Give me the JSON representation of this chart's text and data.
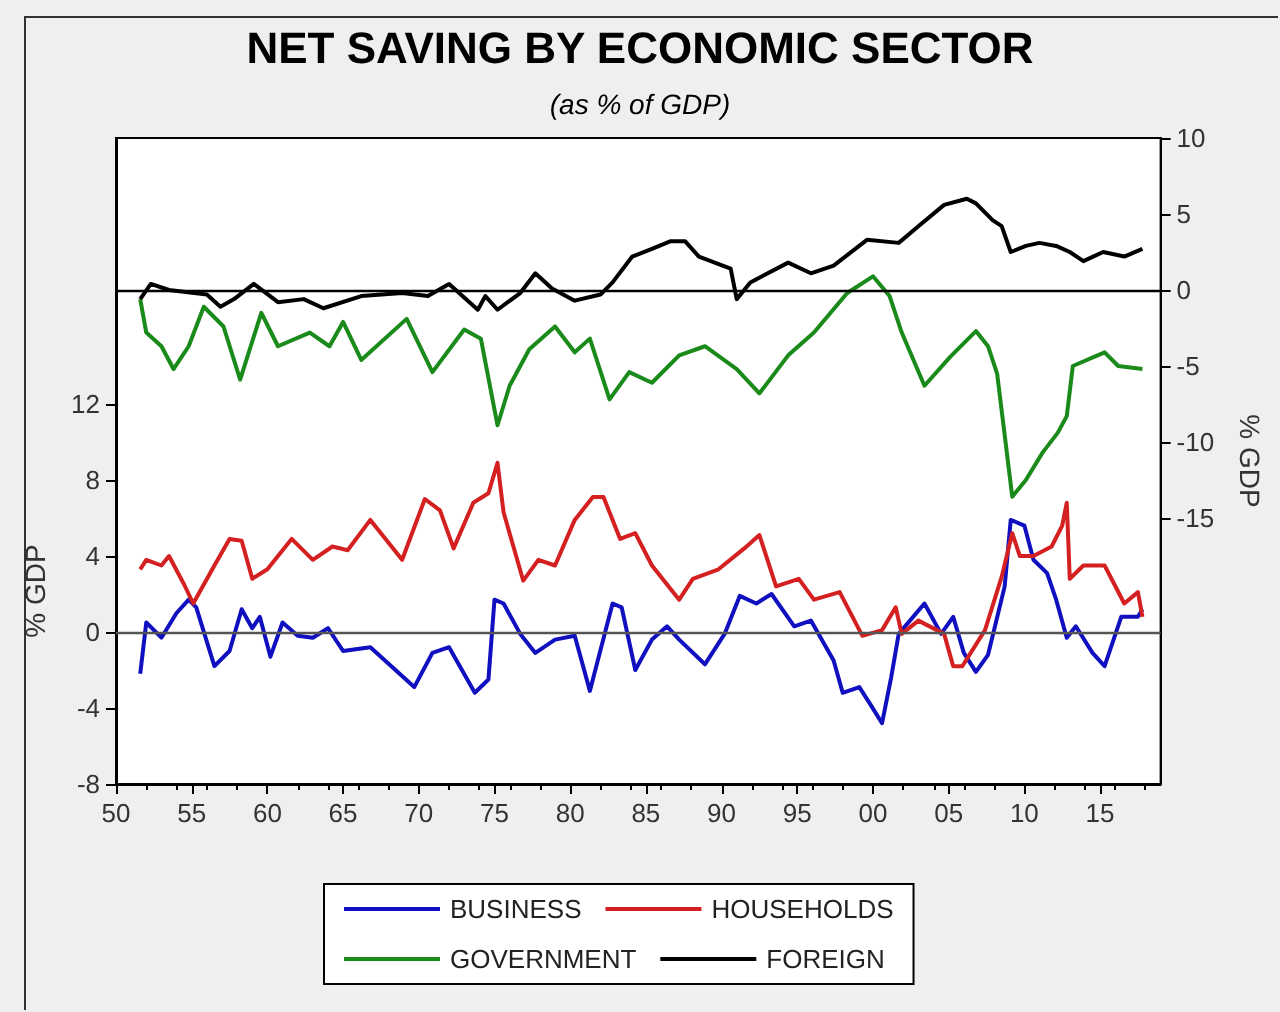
{
  "chart_data": {
    "type": "line",
    "title": "NET SAVING BY ECONOMIC SECTOR",
    "subtitle": "(as % of GDP)",
    "ylabel": "% GDP",
    "y2label": "% GDP",
    "xlim": [
      1950,
      2019
    ],
    "xticks": [
      {
        "value": 1950,
        "label": "50"
      },
      {
        "value": 1955,
        "label": "55"
      },
      {
        "value": 1960,
        "label": "60"
      },
      {
        "value": 1965,
        "label": "65"
      },
      {
        "value": 1970,
        "label": "70"
      },
      {
        "value": 1975,
        "label": "75"
      },
      {
        "value": 1980,
        "label": "80"
      },
      {
        "value": 1985,
        "label": "85"
      },
      {
        "value": 1990,
        "label": "90"
      },
      {
        "value": 1995,
        "label": "95"
      },
      {
        "value": 2000,
        "label": "00"
      },
      {
        "value": 2005,
        "label": "05"
      },
      {
        "value": 2010,
        "label": "10"
      },
      {
        "value": 2015,
        "label": "15"
      }
    ],
    "ylim": [
      -8,
      26
    ],
    "yticks": [
      -8,
      -4,
      0,
      4,
      8,
      12
    ],
    "y2lim": [
      -32.5,
      10
    ],
    "y2ticks": [
      -15,
      -10,
      -5,
      0,
      5,
      10
    ],
    "grid": false,
    "legend": "bottom",
    "marker": "none",
    "line_style": "solid",
    "ref_lines": [
      {
        "axis": "y",
        "value": 0,
        "color": "#555555"
      },
      {
        "axis": "y2",
        "value": 0,
        "color": "#000000"
      }
    ],
    "series": [
      {
        "name": "BUSINESS",
        "color": "#1010c0",
        "x": [
          1951.6,
          1952,
          1953,
          1954,
          1954.8,
          1955.3,
          1956.5,
          1957.5,
          1958.3,
          1959,
          1959.5,
          1960.2,
          1961,
          1962,
          1963,
          1964,
          1965,
          1966.8,
          1969.7,
          1970.9,
          1972,
          1973.7,
          1974.6,
          1975,
          1975.6,
          1976.7,
          1977.7,
          1979,
          1980.3,
          1981.3,
          1982.8,
          1983.4,
          1984.3,
          1985.4,
          1986.4,
          1987.2,
          1988.9,
          1990.2,
          1991.2,
          1992.3,
          1993.3,
          1994.8,
          1995.9,
          1997.4,
          1998,
          1999.1,
          1999.9,
          2000.6,
          2001.2,
          2001.7,
          2003.4,
          2004.5,
          2005.3,
          2006,
          2006.8,
          2007.6,
          2008.7,
          2009.1,
          2010,
          2010.6,
          2011.5,
          2012.1,
          2012.8,
          2013.4,
          2014.5,
          2015.3,
          2016.4,
          2017.5,
          2017.8
        ],
        "values": [
          -2.2,
          0.5,
          -0.3,
          1.0,
          1.7,
          1.3,
          -1.8,
          -1.0,
          1.2,
          0.2,
          0.8,
          -1.3,
          0.5,
          -0.2,
          -0.3,
          0.2,
          -1.0,
          -0.8,
          -2.9,
          -1.1,
          -0.8,
          -3.2,
          -2.5,
          1.7,
          1.5,
          -0.1,
          -1.1,
          -0.4,
          -0.2,
          -3.1,
          1.5,
          1.3,
          -2.0,
          -0.4,
          0.3,
          -0.4,
          -1.7,
          -0.1,
          1.9,
          1.5,
          2.0,
          0.3,
          0.6,
          -1.5,
          -3.2,
          -2.9,
          -3.9,
          -4.8,
          -2.4,
          -0.1,
          1.5,
          -0.1,
          0.8,
          -1.1,
          -2.1,
          -1.2,
          2.4,
          5.9,
          5.6,
          3.8,
          3.1,
          1.7,
          -0.3,
          0.3,
          -1.1,
          -1.8,
          0.8,
          0.8,
          1.2
        ]
      },
      {
        "name": "HOUSEHOLDS",
        "color": "#d42020",
        "x": [
          1951.6,
          1952,
          1953,
          1953.5,
          1954.5,
          1955.1,
          1956.5,
          1957.5,
          1958.3,
          1959,
          1960,
          1961.6,
          1963,
          1964.3,
          1965.3,
          1966.8,
          1968.9,
          1970.4,
          1971.4,
          1972.3,
          1973.6,
          1974.6,
          1975.2,
          1975.6,
          1976.9,
          1977.9,
          1979,
          1980.3,
          1981.5,
          1982.2,
          1983.3,
          1984.3,
          1985.4,
          1987.2,
          1988.1,
          1989.8,
          1991.5,
          1992.5,
          1993.6,
          1995.1,
          1996.1,
          1997.8,
          1999.3,
          2000.6,
          2001.5,
          2001.9,
          2003,
          2004.7,
          2005.3,
          2005.9,
          2007.4,
          2008.5,
          2009.2,
          2009.7,
          2010.6,
          2011.8,
          2012.5,
          2012.8,
          2013,
          2013.9,
          2015.3,
          2016.6,
          2017.5,
          2017.8
        ],
        "values": [
          3.3,
          3.8,
          3.5,
          4.0,
          2.5,
          1.5,
          3.5,
          4.9,
          4.8,
          2.8,
          3.3,
          4.9,
          3.8,
          4.5,
          4.3,
          5.9,
          3.8,
          7.0,
          6.4,
          4.4,
          6.8,
          7.3,
          8.9,
          6.3,
          2.7,
          3.8,
          3.5,
          5.9,
          7.1,
          7.1,
          4.9,
          5.2,
          3.5,
          1.7,
          2.8,
          3.3,
          4.4,
          5.1,
          2.4,
          2.8,
          1.7,
          2.1,
          -0.2,
          0.1,
          1.3,
          -0.1,
          0.6,
          -0.1,
          -1.8,
          -1.8,
          0.1,
          2.9,
          5.2,
          4.0,
          4.0,
          4.5,
          5.6,
          6.8,
          2.8,
          3.5,
          3.5,
          1.5,
          2.1,
          0.8
        ]
      },
      {
        "name": "GOVERNMENT",
        "color": "#1a8a1a",
        "axis": "y2",
        "x": [
          1951.6,
          1952,
          1953,
          1953.8,
          1954.8,
          1955.8,
          1957.1,
          1958.2,
          1959.6,
          1960.7,
          1962.8,
          1964.1,
          1965,
          1966.2,
          1969.2,
          1970.9,
          1973,
          1974.1,
          1975.2,
          1976,
          1977.3,
          1979,
          1980.3,
          1981.3,
          1982.6,
          1983.9,
          1985.4,
          1987.2,
          1988.9,
          1991,
          1992.5,
          1994.4,
          1996.1,
          1998.3,
          2000,
          2001.1,
          2001.9,
          2003.4,
          2005.1,
          2006.8,
          2007.6,
          2008.2,
          2009.2,
          2010.1,
          2011.2,
          2012.2,
          2012.8,
          2013.2,
          2015.3,
          2016.2,
          2017.8
        ],
        "values": [
          -0.6,
          -2.8,
          -3.7,
          -5.2,
          -3.7,
          -1.1,
          -2.4,
          -5.9,
          -1.5,
          -3.7,
          -2.8,
          -3.7,
          -2.1,
          -4.6,
          -1.9,
          -5.4,
          -2.6,
          -3.2,
          -8.9,
          -6.3,
          -3.9,
          -2.4,
          -4.1,
          -3.2,
          -7.2,
          -5.4,
          -6.1,
          -4.3,
          -3.7,
          -5.2,
          -6.8,
          -4.3,
          -2.8,
          -0.2,
          0.9,
          -0.4,
          -2.8,
          -6.3,
          -4.4,
          -2.7,
          -3.7,
          -5.5,
          -13.6,
          -12.5,
          -10.7,
          -9.4,
          -8.3,
          -5.0,
          -4.1,
          -5.0,
          -5.2
        ]
      },
      {
        "name": "FOREIGN",
        "color": "#000000",
        "axis": "y2",
        "x": [
          1951.6,
          1952.3,
          1953.5,
          1956,
          1956.9,
          1957.8,
          1959.1,
          1960.7,
          1962.4,
          1963.7,
          1966.2,
          1968.9,
          1970.6,
          1972,
          1973.9,
          1974.4,
          1975.2,
          1976.7,
          1977.7,
          1978.8,
          1980.3,
          1982,
          1982.8,
          1984.1,
          1985.4,
          1986.6,
          1987.6,
          1988.5,
          1990.6,
          1991,
          1991.9,
          1994.4,
          1995.9,
          1997.4,
          1999.6,
          2001.7,
          2003,
          2004.7,
          2006.2,
          2006.8,
          2007.9,
          2008.5,
          2009.1,
          2010.1,
          2011,
          2012.1,
          2013,
          2013.9,
          2015.2,
          2016.6,
          2017.8
        ],
        "values": [
          -0.6,
          0.4,
          0,
          -0.3,
          -1.1,
          -0.6,
          0.4,
          -0.8,
          -0.6,
          -1.2,
          -0.4,
          -0.2,
          -0.4,
          0.4,
          -1.3,
          -0.4,
          -1.3,
          -0.2,
          1.1,
          0.1,
          -0.7,
          -0.3,
          0.5,
          2.2,
          2.7,
          3.2,
          3.2,
          2.2,
          1.4,
          -0.6,
          0.5,
          1.8,
          1.1,
          1.6,
          3.3,
          3.1,
          4.2,
          5.6,
          6.0,
          5.7,
          4.6,
          4.2,
          2.5,
          2.9,
          3.1,
          2.9,
          2.5,
          1.9,
          2.5,
          2.2,
          2.7
        ]
      }
    ]
  }
}
